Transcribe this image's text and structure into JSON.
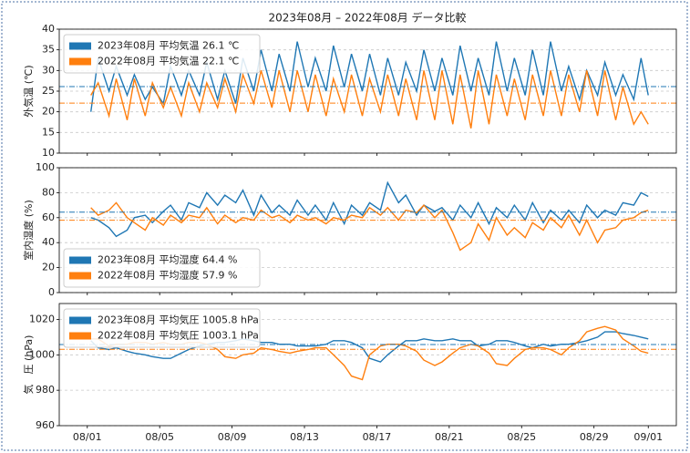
{
  "title": "2023年08月 – 2022年08月 データ比較",
  "chart_data": [
    {
      "type": "line",
      "ylabel": "外気温 (℃)",
      "xlim": [
        -1.55,
        32.55
      ],
      "ylim": [
        10,
        40
      ],
      "yticks": [
        10,
        15,
        20,
        25,
        30,
        35,
        40
      ],
      "grid": "y",
      "legend": "upper left",
      "x": [
        0.2,
        0.6,
        1.2,
        1.6,
        2.2,
        2.6,
        3.2,
        3.6,
        4.2,
        4.6,
        5.2,
        5.6,
        6.2,
        6.6,
        7.2,
        7.6,
        8.2,
        8.6,
        9.2,
        9.6,
        10.2,
        10.6,
        11.2,
        11.6,
        12.2,
        12.6,
        13.2,
        13.6,
        14.2,
        14.6,
        15.2,
        15.6,
        16.2,
        16.6,
        17.2,
        17.6,
        18.2,
        18.6,
        19.2,
        19.6,
        20.2,
        20.6,
        21.2,
        21.6,
        22.2,
        22.6,
        23.2,
        23.6,
        24.2,
        24.6,
        25.2,
        25.6,
        26.2,
        26.6,
        27.2,
        27.6,
        28.2,
        28.6,
        29.2,
        29.6,
        30.2,
        30.6,
        31
      ],
      "series": [
        {
          "name": "2023年08月 平均気温 26.1 ℃",
          "color": "#1f77b4",
          "mean": 26.1,
          "values": [
            20,
            33,
            25,
            31,
            24,
            29,
            23,
            26,
            22,
            31,
            24,
            30,
            24,
            32,
            23,
            30,
            22,
            33,
            25,
            35,
            25,
            34,
            25,
            37,
            26,
            33,
            25,
            36,
            26,
            34,
            25,
            34,
            24,
            33,
            24,
            32,
            25,
            35,
            25,
            33,
            24,
            36,
            25,
            33,
            24,
            37,
            25,
            33,
            24,
            35,
            24,
            37,
            25,
            31,
            23,
            30,
            24,
            32,
            24,
            29,
            23,
            33,
            24
          ]
        },
        {
          "name": "2022年08月 平均気温 22.1 ℃",
          "color": "#ff7f0e",
          "mean": 22.1,
          "values": [
            24,
            27,
            19,
            28,
            18,
            28,
            19,
            27,
            21,
            26,
            19,
            27,
            20,
            27,
            21,
            28,
            20,
            29,
            22,
            30,
            21,
            30,
            20,
            30,
            20,
            29,
            19,
            28,
            20,
            29,
            19,
            28,
            20,
            29,
            19,
            28,
            18,
            30,
            18,
            30,
            17,
            29,
            16,
            30,
            17,
            29,
            19,
            28,
            18,
            29,
            19,
            30,
            19,
            29,
            20,
            30,
            19,
            30,
            18,
            26,
            17,
            20,
            17
          ]
        }
      ]
    },
    {
      "type": "line",
      "ylabel": "室内湿度 (%)",
      "xlim": [
        -1.55,
        32.55
      ],
      "ylim": [
        0,
        100
      ],
      "yticks": [
        0,
        20,
        40,
        60,
        80,
        100
      ],
      "grid": "y",
      "legend": "lower left",
      "x": [
        0.2,
        0.6,
        1.2,
        1.6,
        2.2,
        2.6,
        3.2,
        3.6,
        4.2,
        4.6,
        5.2,
        5.6,
        6.2,
        6.6,
        7.2,
        7.6,
        8.2,
        8.6,
        9.2,
        9.6,
        10.2,
        10.6,
        11.2,
        11.6,
        12.2,
        12.6,
        13.2,
        13.6,
        14.2,
        14.6,
        15.2,
        15.6,
        16.2,
        16.6,
        17.2,
        17.6,
        18.2,
        18.6,
        19.2,
        19.6,
        20.2,
        20.6,
        21.2,
        21.6,
        22.2,
        22.6,
        23.2,
        23.6,
        24.2,
        24.6,
        25.2,
        25.6,
        26.2,
        26.6,
        27.2,
        27.6,
        28.2,
        28.6,
        29.2,
        29.6,
        30.2,
        30.6,
        31
      ],
      "series": [
        {
          "name": "2023年08月 平均湿度 64.4 %",
          "color": "#1f77b4",
          "mean": 64.4,
          "values": [
            60,
            58,
            52,
            45,
            50,
            60,
            62,
            56,
            65,
            70,
            58,
            72,
            68,
            80,
            70,
            78,
            72,
            82,
            62,
            78,
            64,
            70,
            62,
            74,
            62,
            70,
            58,
            72,
            55,
            70,
            62,
            72,
            66,
            88,
            72,
            78,
            62,
            70,
            65,
            68,
            58,
            70,
            60,
            72,
            55,
            68,
            60,
            70,
            58,
            72,
            56,
            66,
            58,
            66,
            56,
            70,
            60,
            66,
            62,
            72,
            70,
            80,
            77
          ]
        },
        {
          "name": "2022年08月 平均湿度 57.9 %",
          "color": "#ff7f0e",
          "mean": 57.9,
          "values": [
            68,
            62,
            66,
            72,
            60,
            56,
            50,
            60,
            54,
            62,
            56,
            62,
            60,
            68,
            55,
            62,
            56,
            60,
            58,
            66,
            60,
            62,
            56,
            62,
            58,
            60,
            55,
            60,
            58,
            62,
            60,
            68,
            62,
            68,
            58,
            66,
            64,
            70,
            60,
            66,
            48,
            34,
            40,
            55,
            42,
            60,
            46,
            52,
            44,
            56,
            50,
            60,
            52,
            62,
            46,
            58,
            40,
            50,
            52,
            58,
            60,
            64,
            66
          ]
        }
      ]
    },
    {
      "type": "line",
      "ylabel": "気　圧 (hPa)",
      "xlim": [
        -1.55,
        32.55
      ],
      "ylim": [
        960,
        1029
      ],
      "yticks": [
        960,
        980,
        1000,
        1020
      ],
      "grid": "y",
      "legend": "upper left",
      "xticks": [
        {
          "value": 0,
          "label": "08/01"
        },
        {
          "value": 4,
          "label": "08/05"
        },
        {
          "value": 8,
          "label": "08/09"
        },
        {
          "value": 12,
          "label": "08/13"
        },
        {
          "value": 16,
          "label": "08/17"
        },
        {
          "value": 20,
          "label": "08/21"
        },
        {
          "value": 24,
          "label": "08/25"
        },
        {
          "value": 28,
          "label": "08/29"
        },
        {
          "value": 31,
          "label": "09/01"
        }
      ],
      "x": [
        0.2,
        0.6,
        1.2,
        1.6,
        2.2,
        2.6,
        3.2,
        3.6,
        4.2,
        4.6,
        5.2,
        5.6,
        6.2,
        6.6,
        7.2,
        7.6,
        8.2,
        8.6,
        9.2,
        9.6,
        10.2,
        10.6,
        11.2,
        11.6,
        12.2,
        12.6,
        13.2,
        13.6,
        14.2,
        14.6,
        15.2,
        15.6,
        16.2,
        16.6,
        17.2,
        17.6,
        18.2,
        18.6,
        19.2,
        19.6,
        20.2,
        20.6,
        21.2,
        21.6,
        22.2,
        22.6,
        23.2,
        23.6,
        24.2,
        24.6,
        25.2,
        25.6,
        26.2,
        26.6,
        27.2,
        27.6,
        28.2,
        28.6,
        29.2,
        29.6,
        30.2,
        30.6,
        31
      ],
      "series": [
        {
          "name": "2023年08月 平均気圧 1005.8 hPa",
          "color": "#1f77b4",
          "mean": 1005.8,
          "values": [
            1008,
            1004,
            1003,
            1004,
            1002,
            1001,
            1000,
            999,
            998,
            998,
            1001,
            1003,
            1005,
            1006,
            1007,
            1007,
            1008,
            1009,
            1008,
            1007,
            1007,
            1006,
            1006,
            1005,
            1005,
            1005,
            1006,
            1008,
            1008,
            1007,
            1004,
            998,
            996,
            1000,
            1005,
            1008,
            1008,
            1009,
            1008,
            1008,
            1009,
            1008,
            1008,
            1005,
            1006,
            1008,
            1008,
            1007,
            1005,
            1004,
            1006,
            1005,
            1006,
            1006,
            1007,
            1008,
            1010,
            1013,
            1013,
            1012,
            1011,
            1010,
            1009
          ]
        },
        {
          "name": "2022年08月 平均気圧 1003.1 hPa",
          "color": "#ff7f0e",
          "mean": 1003.1,
          "values": [
            1009,
            1009,
            1005,
            1006,
            1006,
            1007,
            1007,
            1006,
            1007,
            1006,
            1006,
            1007,
            1007,
            1006,
            1003,
            999,
            998,
            1000,
            1001,
            1004,
            1003,
            1002,
            1001,
            1002,
            1003,
            1004,
            1004,
            1000,
            994,
            988,
            986,
            1000,
            1005,
            1006,
            1006,
            1005,
            1002,
            997,
            994,
            996,
            1001,
            1004,
            1006,
            1005,
            1001,
            995,
            994,
            998,
            1003,
            1004,
            1004,
            1003,
            1000,
            1004,
            1008,
            1013,
            1015,
            1016,
            1014,
            1009,
            1005,
            1002,
            1001
          ]
        }
      ]
    }
  ]
}
